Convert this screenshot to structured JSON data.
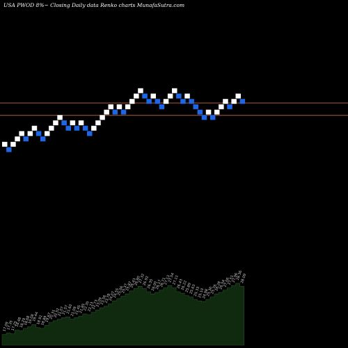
{
  "title": "USA PWOD 8%~  Closing Daily data  Renko  charts MunafaSutra.com",
  "colors": {
    "background": "#000000",
    "up_brick": "#ffffff",
    "down_brick": "#1e66e6",
    "reference_line": "#b05a3c",
    "volume_area": "#0f2a0f"
  },
  "chart_data": {
    "type": "renko",
    "bricks": [
      {
        "dir": "up",
        "level": 1
      },
      {
        "dir": "down",
        "level": 0
      },
      {
        "dir": "up",
        "level": 1
      },
      {
        "dir": "up",
        "level": 2
      },
      {
        "dir": "up",
        "level": 3
      },
      {
        "dir": "down",
        "level": 2
      },
      {
        "dir": "up",
        "level": 3
      },
      {
        "dir": "up",
        "level": 4
      },
      {
        "dir": "down",
        "level": 3
      },
      {
        "dir": "down",
        "level": 2
      },
      {
        "dir": "up",
        "level": 3
      },
      {
        "dir": "up",
        "level": 4
      },
      {
        "dir": "up",
        "level": 5
      },
      {
        "dir": "up",
        "level": 6
      },
      {
        "dir": "down",
        "level": 5
      },
      {
        "dir": "down",
        "level": 4
      },
      {
        "dir": "up",
        "level": 5
      },
      {
        "dir": "down",
        "level": 4
      },
      {
        "dir": "up",
        "level": 5
      },
      {
        "dir": "down",
        "level": 4
      },
      {
        "dir": "down",
        "level": 3
      },
      {
        "dir": "up",
        "level": 4
      },
      {
        "dir": "up",
        "level": 5
      },
      {
        "dir": "up",
        "level": 6
      },
      {
        "dir": "up",
        "level": 7
      },
      {
        "dir": "up",
        "level": 8
      },
      {
        "dir": "down",
        "level": 7
      },
      {
        "dir": "up",
        "level": 8
      },
      {
        "dir": "down",
        "level": 7
      },
      {
        "dir": "up",
        "level": 8
      },
      {
        "dir": "up",
        "level": 9
      },
      {
        "dir": "up",
        "level": 10
      },
      {
        "dir": "up",
        "level": 11
      },
      {
        "dir": "down",
        "level": 10
      },
      {
        "dir": "down",
        "level": 9
      },
      {
        "dir": "up",
        "level": 10
      },
      {
        "dir": "down",
        "level": 9
      },
      {
        "dir": "down",
        "level": 8
      },
      {
        "dir": "up",
        "level": 9
      },
      {
        "dir": "up",
        "level": 10
      },
      {
        "dir": "up",
        "level": 11
      },
      {
        "dir": "down",
        "level": 10
      },
      {
        "dir": "down",
        "level": 9
      },
      {
        "dir": "up",
        "level": 10
      },
      {
        "dir": "down",
        "level": 9
      },
      {
        "dir": "down",
        "level": 8
      },
      {
        "dir": "down",
        "level": 7
      },
      {
        "dir": "down",
        "level": 6
      },
      {
        "dir": "up",
        "level": 7
      },
      {
        "dir": "down",
        "level": 6
      },
      {
        "dir": "up",
        "level": 7
      },
      {
        "dir": "up",
        "level": 8
      },
      {
        "dir": "up",
        "level": 9
      },
      {
        "dir": "down",
        "level": 8
      },
      {
        "dir": "up",
        "level": 9
      },
      {
        "dir": "up",
        "level": 10
      },
      {
        "dir": "down",
        "level": 9
      }
    ],
    "reference_lines": [
      8.7,
      6.4
    ],
    "level_range": [
      -1,
      13
    ],
    "volume_labels": [
      "17.09",
      "17.35",
      "17.25",
      "18.48",
      "18.29",
      "18.68",
      "19.08",
      "19.44",
      "18.91",
      "18.89",
      "19.67",
      "20.31",
      "20.52",
      "21.07",
      "21.57",
      "21.60",
      "21.09",
      "21.45",
      "21.85",
      "22.35",
      "22.23",
      "22.73",
      "23.09",
      "23.56",
      "23.78",
      "24.07",
      "24.55",
      "25.06",
      "25.37",
      "25.87",
      "26.43",
      "26.80",
      "27.32",
      "26.92",
      "26.35",
      "26.00",
      "26.17",
      "26.71",
      "27.13",
      "27.54",
      "27.11",
      "26.43",
      "26.22",
      "25.89",
      "25.63",
      "25.33",
      "25.10",
      "24.98",
      "25.30",
      "25.76",
      "26.28",
      "26.54",
      "27.06",
      "27.51",
      "27.96",
      "28.36",
      "28.09"
    ],
    "volume_values": [
      14,
      16,
      15,
      20,
      19,
      22,
      24,
      27,
      23,
      22,
      26,
      30,
      32,
      34,
      36,
      37,
      34,
      36,
      38,
      41,
      40,
      43,
      46,
      49,
      51,
      54,
      58,
      61,
      64,
      67,
      71,
      74,
      77,
      74,
      70,
      67,
      69,
      72,
      75,
      78,
      75,
      70,
      68,
      65,
      63,
      60,
      58,
      57,
      60,
      63,
      67,
      69,
      72,
      75,
      78,
      81,
      77
    ]
  }
}
